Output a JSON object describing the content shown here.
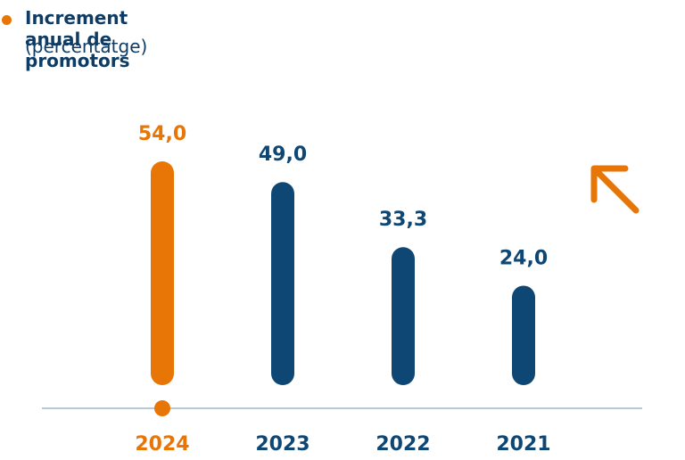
{
  "header": {
    "title": "Increment anual de promotors",
    "subtitle": "(percentatge)"
  },
  "colors": {
    "highlight": "#e87607",
    "primary": "#0f4774",
    "axis": "#b7c8d6",
    "text_dark": "#0f3c64"
  },
  "icons": {
    "trend": "arrow-up-left-icon"
  },
  "chart_data": {
    "type": "bar",
    "categories": [
      "2024",
      "2023",
      "2022",
      "2021"
    ],
    "values": [
      54.0,
      49.0,
      33.3,
      24.0
    ],
    "value_labels": [
      "54,0",
      "49,0",
      "33,3",
      "24,0"
    ],
    "highlight_index": 0,
    "ylim": [
      0,
      54
    ],
    "grid": false,
    "title": "Increment anual de promotors",
    "subtitle": "(percentatge)",
    "xlabel": "",
    "ylabel": ""
  }
}
